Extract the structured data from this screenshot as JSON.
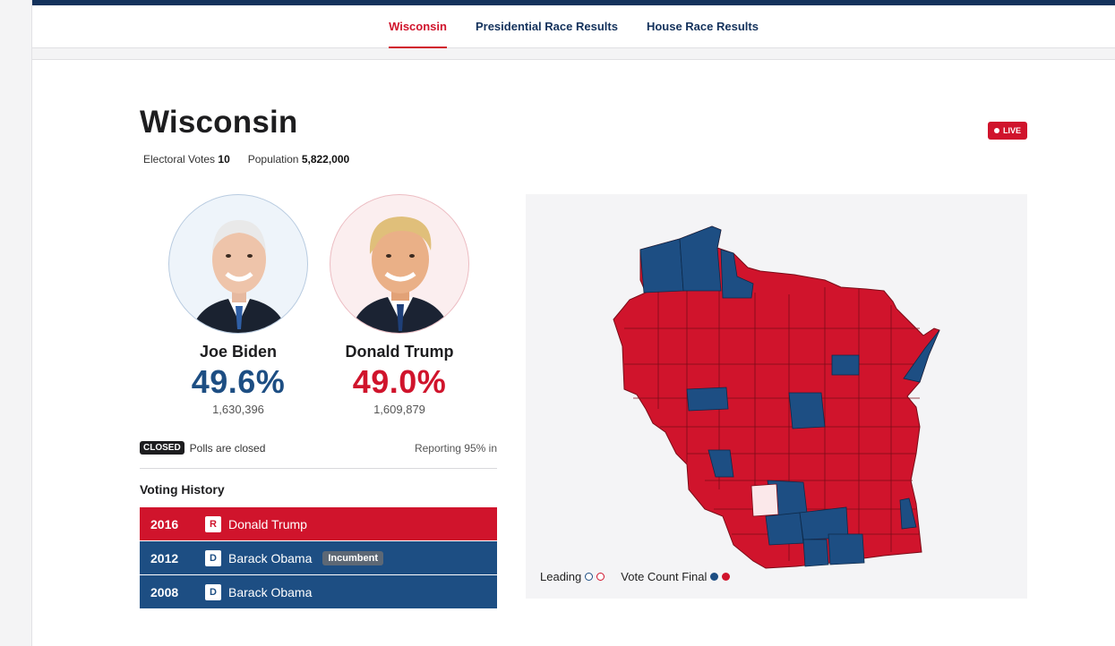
{
  "nav": {
    "tabs": [
      {
        "label": "Wisconsin",
        "active": true
      },
      {
        "label": "Presidential Race Results",
        "active": false
      },
      {
        "label": "House Race Results",
        "active": false
      }
    ]
  },
  "state": {
    "title": "Wisconsin",
    "live_label": "LIVE",
    "electoral_votes_label": "Electoral Votes",
    "electoral_votes": "10",
    "population_label": "Population",
    "population": "5,822,000"
  },
  "candidates": [
    {
      "name": "Joe Biden",
      "pct": "49.6%",
      "votes": "1,630,396",
      "party": "D",
      "color": "#1d4e83"
    },
    {
      "name": "Donald Trump",
      "pct": "49.0%",
      "votes": "1,609,879",
      "party": "R",
      "color": "#d0142c"
    }
  ],
  "status": {
    "badge": "CLOSED",
    "text": "Polls are closed",
    "reporting": "Reporting 95% in"
  },
  "voting_history": {
    "title": "Voting History",
    "rows": [
      {
        "year": "2016",
        "party": "R",
        "name": "Donald Trump",
        "tag": ""
      },
      {
        "year": "2012",
        "party": "D",
        "name": "Barack Obama",
        "tag": "Incumbent"
      },
      {
        "year": "2008",
        "party": "D",
        "name": "Barack Obama",
        "tag": ""
      }
    ]
  },
  "map": {
    "legend_leading": "Leading",
    "legend_final": "Vote Count Final",
    "colors": {
      "dem": "#1d4e83",
      "rep": "#d0142c",
      "tie": "#fbe8ea"
    }
  }
}
